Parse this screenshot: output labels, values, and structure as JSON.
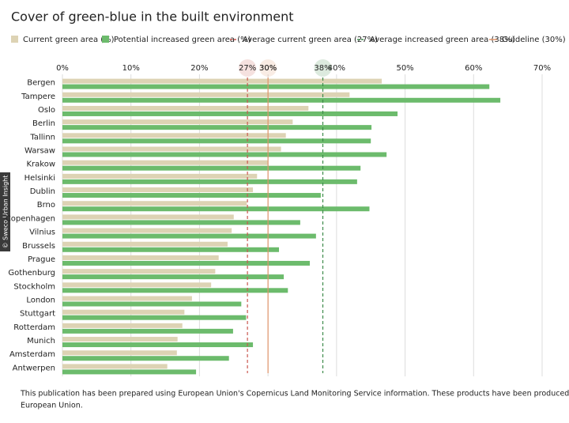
{
  "chart_data": {
    "type": "bar",
    "orientation": "horizontal",
    "title": "Cover of green-blue in the built environment",
    "categories": [
      "Bergen",
      "Tampere",
      "Oslo",
      "Berlin",
      "Tallinn",
      "Warsaw",
      "Krakow",
      "Helsinki",
      "Dublin",
      "Brno",
      "Copenhagen",
      "Vilnius",
      "Brussels",
      "Prague",
      "Gothenburg",
      "Stockholm",
      "London",
      "Stuttgart",
      "Rotterdam",
      "Munich",
      "Amsterdam",
      "Antwerpen"
    ],
    "series": [
      {
        "name": "Current green area (%)",
        "color": "#ddd3b4",
        "values": [
          46.6,
          41.9,
          35.9,
          33.6,
          32.6,
          31.9,
          30.0,
          28.4,
          27.8,
          26.9,
          25.0,
          24.7,
          24.1,
          22.8,
          22.3,
          21.7,
          18.9,
          17.8,
          17.5,
          16.8,
          16.7,
          15.3
        ]
      },
      {
        "name": "Potential increased green area (%)",
        "color": "#6cbb6c",
        "values": [
          62.3,
          63.9,
          48.9,
          45.1,
          45.0,
          47.3,
          43.5,
          43.0,
          37.7,
          44.8,
          34.7,
          37.0,
          31.6,
          36.1,
          32.3,
          32.9,
          26.1,
          26.8,
          24.9,
          27.8,
          24.3,
          19.5
        ]
      }
    ],
    "reference_lines": [
      {
        "name": "Average current green area (27%)",
        "value": 27,
        "label": "27%",
        "color": "#c9574f",
        "dashed": true
      },
      {
        "name": "Average increased green area (38%)",
        "value": 38,
        "label": "38%",
        "color": "#3d8b4a",
        "dashed": true
      },
      {
        "name": "Guideline (30%)",
        "value": 30,
        "label": "30%",
        "color": "#e0956a",
        "dashed": false
      }
    ],
    "xlim": [
      0,
      70
    ],
    "xticks": [
      {
        "value": 0,
        "label": "0%"
      },
      {
        "value": 10,
        "label": "10%"
      },
      {
        "value": 20,
        "label": "20%"
      },
      {
        "value": 30,
        "label": "30%"
      },
      {
        "value": 40,
        "label": "40%"
      },
      {
        "value": 50,
        "label": "50%"
      },
      {
        "value": 60,
        "label": "60%"
      },
      {
        "value": 70,
        "label": "70%"
      }
    ],
    "grid": true,
    "credit": "© Sweco Urban Insight",
    "footnote": [
      "This publication has been prepared using European Union's Copernicus Land Monitoring Service information. These products have been produced with funding by the",
      "European Union."
    ]
  }
}
